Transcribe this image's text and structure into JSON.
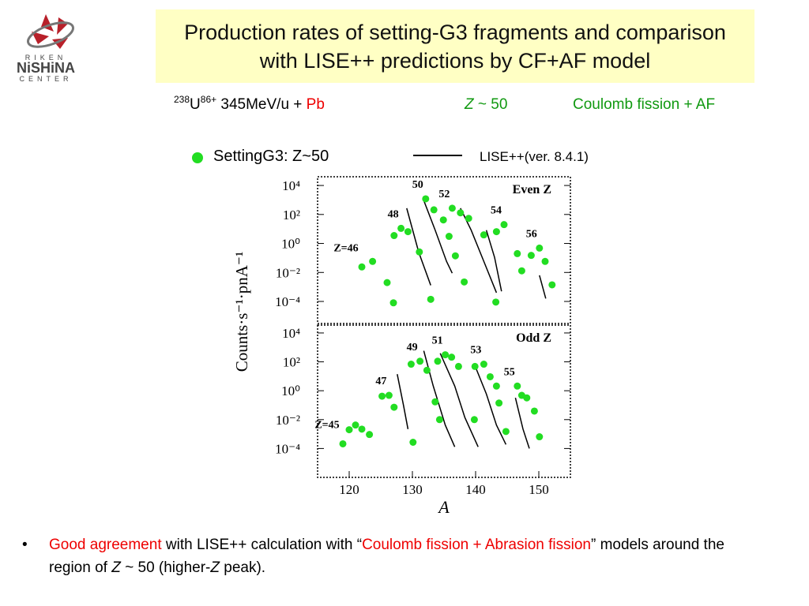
{
  "logo": {
    "top": "RIKEN",
    "middle": "NiSHiNA",
    "bottom": "CENTER"
  },
  "header": {
    "title": "Production rates of setting-G3  fragments and comparison with LISE++ predictions by CF+AF model",
    "beam": {
      "mass": "238",
      "element": "U",
      "charge": "86+",
      "energy": " 345MeV/u + ",
      "target": "Pb"
    },
    "region": {
      "symbol": "Z",
      "rest": " ~ 50"
    },
    "model": "Coulomb fission + AF"
  },
  "legend": {
    "points": "SettingG3: Z~50",
    "line": "LISE++(ver. 8.4.1)"
  },
  "chart_data": [
    {
      "type": "scatter",
      "log_scale": true,
      "panel_label": "Even Z",
      "y_label": "Counts·s⁻¹·pnA⁻¹",
      "xlim": [
        115,
        155
      ],
      "ylim": [
        3e-06,
        40000
      ],
      "yticks": [
        {
          "value": 0.0001,
          "label": "10⁻⁴"
        },
        {
          "value": 0.01,
          "label": "10⁻²"
        },
        {
          "value": 1,
          "label": "10⁰"
        },
        {
          "value": 100,
          "label": "10²"
        },
        {
          "value": 10000,
          "label": "10⁴"
        }
      ],
      "series": [
        {
          "name": "Z=46",
          "color": "#22dd22",
          "x": [
            122,
            123.7,
            126,
            127
          ],
          "values": [
            0.024,
            0.058,
            0.002,
            8e-05
          ],
          "line_x": [],
          "line_values": []
        },
        {
          "name": "48",
          "color": "#22dd22",
          "x": [
            127.1,
            128.2,
            129.3,
            131.1,
            132.9
          ],
          "values": [
            3.5,
            11,
            6.5,
            0.26,
            0.00014
          ],
          "line_x": [
            129.1,
            131,
            132.9
          ],
          "line_values": [
            270,
            0.25,
            0.0013
          ]
        },
        {
          "name": "50",
          "color": "#22dd22",
          "x": [
            132.1,
            133.4,
            134.9,
            135.8,
            136.8,
            138.2
          ],
          "values": [
            1200,
            210,
            42,
            3.1,
            0.14,
            0.0022
          ],
          "line_x": [
            131.7,
            133.6,
            135.4,
            136.3
          ],
          "line_values": [
            1200,
            8.3,
            0.058,
            0.0089
          ]
        },
        {
          "name": "52",
          "color": "#22dd22",
          "x": [
            136.3,
            137.6,
            138.9,
            141.3,
            143.2
          ],
          "values": [
            270,
            130,
            54,
            3.9,
            9e-05
          ],
          "line_x": [
            137.6,
            139.3,
            141.3,
            143.3
          ],
          "line_values": [
            270,
            8.3,
            0.058,
            0.0004
          ]
        },
        {
          "name": "54",
          "color": "#22dd22",
          "x": [
            143.3,
            144.5,
            146.6,
            147.3
          ],
          "values": [
            6.5,
            20,
            0.2,
            0.013
          ],
          "line_x": [
            141.7,
            143,
            144.1
          ],
          "line_values": [
            8.3,
            0.11,
            0.0005
          ]
        },
        {
          "name": "56",
          "color": "#22dd22",
          "x": [
            148.8,
            150.1,
            151,
            152.1
          ],
          "values": [
            0.15,
            0.48,
            0.058,
            0.0014
          ],
          "line_x": [
            150.1,
            151.1
          ],
          "line_values": [
            0.0063,
            0.00016
          ]
        }
      ]
    },
    {
      "type": "scatter",
      "log_scale": true,
      "panel_label": "Odd Z",
      "x_label": "A",
      "xlim": [
        115,
        155
      ],
      "ylim": [
        1e-06,
        35000
      ],
      "xticks": [
        120,
        130,
        140,
        150
      ],
      "yticks": [
        {
          "value": 0.0001,
          "label": "10⁻⁴"
        },
        {
          "value": 0.01,
          "label": "10⁻²"
        },
        {
          "value": 1,
          "label": "10⁰"
        },
        {
          "value": 100,
          "label": "10²"
        },
        {
          "value": 10000,
          "label": "10⁴"
        }
      ],
      "series": [
        {
          "name": "Z=45",
          "color": "#22dd22",
          "x": [
            119,
            120,
            121,
            122,
            123.2
          ],
          "values": [
            0.00021,
            0.002,
            0.0042,
            0.0022,
            0.00093
          ],
          "line_x": [],
          "line_values": []
        },
        {
          "name": "47",
          "color": "#22dd22",
          "x": [
            125.2,
            126.3,
            127.1,
            130.1
          ],
          "values": [
            0.42,
            0.48,
            0.072,
            0.00027
          ],
          "line_x": [
            127.6,
            128.6,
            129.3
          ],
          "line_values": [
            14,
            0.093,
            0.0022
          ]
        },
        {
          "name": "49",
          "color": "#22dd22",
          "x": [
            129.8,
            131.2,
            132.3,
            133.6,
            134.3
          ],
          "values": [
            69,
            110,
            26,
            0.17,
            0.01
          ],
          "line_x": [
            131.8,
            133.3,
            135.2,
            136.7
          ],
          "line_values": [
            580,
            2.1,
            0.0042,
            0.00013
          ]
        },
        {
          "name": "51",
          "color": "#22dd22",
          "x": [
            134,
            135.2,
            136.2,
            137.3,
            139.8
          ],
          "values": [
            110,
            310,
            210,
            48,
            0.01
          ],
          "line_x": [
            134.4,
            136.7,
            138.3,
            140.4
          ],
          "line_values": [
            390,
            2.1,
            0.014,
            0.00013
          ]
        },
        {
          "name": "53",
          "color": "#22dd22",
          "x": [
            139.9,
            141.3,
            142.3,
            143.3,
            143.7,
            144.8
          ],
          "values": [
            48,
            69,
            9.3,
            2.1,
            0.14,
            0.0015
          ],
          "line_x": [
            139.8,
            141.7,
            143.3,
            144.8
          ],
          "line_values": [
            69,
            0.6,
            0.0042,
            0.00019
          ]
        },
        {
          "name": "55",
          "color": "#22dd22",
          "x": [
            146.6,
            147.3,
            148.1,
            149.3,
            150.1
          ],
          "values": [
            2.1,
            0.48,
            0.32,
            0.039,
            0.00065
          ],
          "line_x": [
            146.3,
            147.5,
            148.5
          ],
          "line_values": [
            0.32,
            0.0022,
            0.0001
          ]
        }
      ]
    }
  ],
  "bullet": [
    {
      "text": "Good agreement",
      "color": "#ee0000"
    },
    {
      "text": " with LISE++ calculation with “",
      "color": "#000000"
    },
    {
      "text": "Coulomb fission + Abrasion fission",
      "color": "#ee0000"
    },
    {
      "text": "” models around the region of  ",
      "color": "#000000"
    },
    {
      "text": "Z",
      "color": "#000000",
      "italic": true
    },
    {
      "text": " ~ 50 (higher-",
      "color": "#000000"
    },
    {
      "text": "Z",
      "color": "#000000",
      "italic": true
    },
    {
      "text": " peak).",
      "color": "#000000"
    }
  ]
}
